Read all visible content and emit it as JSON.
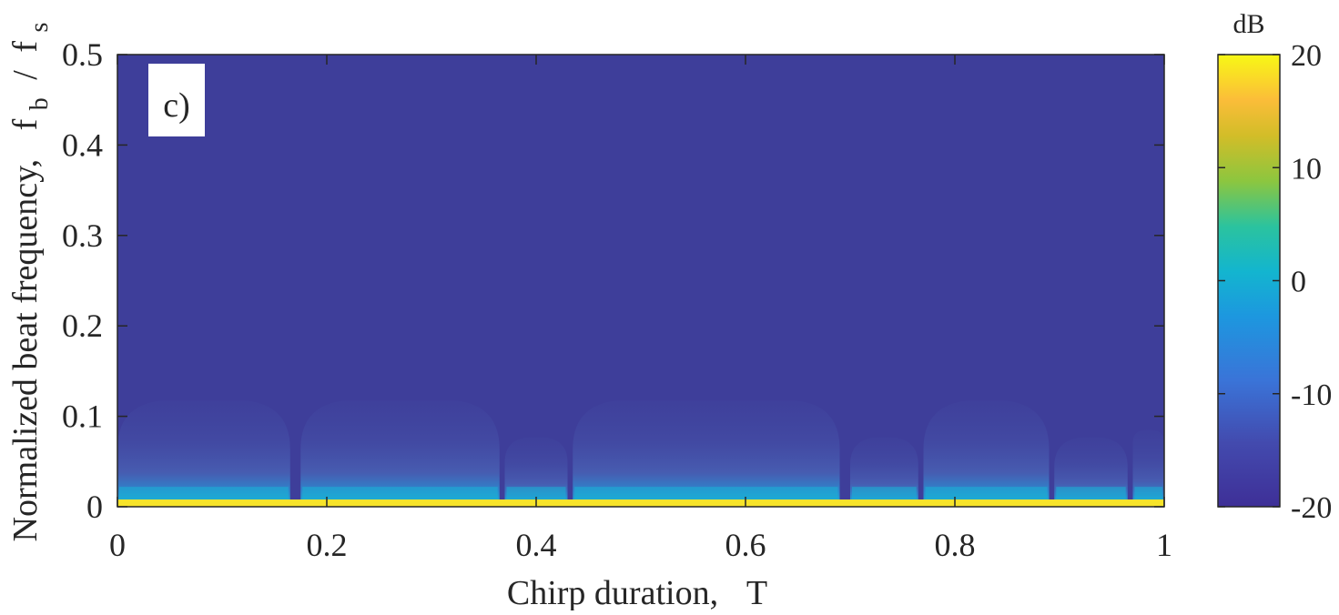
{
  "chart_data": {
    "type": "heatmap",
    "panel_label": "c)",
    "xlabel": "Chirp duration,",
    "xlabel_symbol": "T",
    "ylabel": "Normalized beat frequency,",
    "ylabel_symbol_num": "f",
    "ylabel_symbol_num_sub": "b",
    "ylabel_symbol_sep": "/",
    "ylabel_symbol_den": "f",
    "ylabel_symbol_den_sub": "s",
    "xlim": [
      0,
      1
    ],
    "ylim": [
      0,
      0.5
    ],
    "xticks": [
      "0",
      "0.2",
      "0.4",
      "0.6",
      "0.8",
      "1"
    ],
    "yticks": [
      "0",
      "0.1",
      "0.2",
      "0.3",
      "0.4",
      "0.5"
    ],
    "xtick_values": [
      0,
      0.2,
      0.4,
      0.6,
      0.8,
      1
    ],
    "ytick_values": [
      0,
      0.1,
      0.2,
      0.3,
      0.4,
      0.5
    ],
    "colorbar": {
      "label": "dB",
      "range": [
        -20,
        20
      ],
      "ticks": [
        "20",
        "10",
        "0",
        "-10",
        "-20"
      ],
      "tick_values": [
        20,
        10,
        0,
        -10,
        -20
      ]
    },
    "background_level_db": -20,
    "peak_line": {
      "y_max": 0.008,
      "level_db": 20
    },
    "lobes": [
      {
        "x_start": 0.0,
        "x_end": 0.165,
        "height": 0.118
      },
      {
        "x_start": 0.175,
        "x_end": 0.365,
        "height": 0.118
      },
      {
        "x_start": 0.37,
        "x_end": 0.43,
        "height": 0.077
      },
      {
        "x_start": 0.435,
        "x_end": 0.69,
        "height": 0.118
      },
      {
        "x_start": 0.7,
        "x_end": 0.765,
        "height": 0.077
      },
      {
        "x_start": 0.77,
        "x_end": 0.89,
        "height": 0.118
      },
      {
        "x_start": 0.895,
        "x_end": 0.965,
        "height": 0.077
      },
      {
        "x_start": 0.97,
        "x_end": 1.0,
        "height": 0.085
      }
    ],
    "colors": {
      "background": "#3e3e9a",
      "peak": "#f7e42a",
      "cyan": "#1ab2d6",
      "mid_blue": "#4a66b8"
    }
  }
}
